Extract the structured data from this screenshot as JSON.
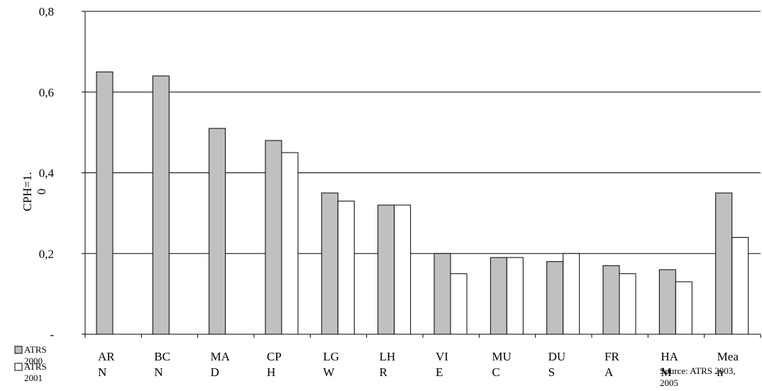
{
  "chart_data": {
    "type": "bar",
    "categories": [
      "ARN",
      "BCN",
      "MAD",
      "CPH",
      "LGW",
      "LHR",
      "VIE",
      "MUC",
      "DUS",
      "FRA",
      "HAM",
      "Mean"
    ],
    "category_label_lines": [
      [
        "AR",
        "N"
      ],
      [
        "BC",
        "N"
      ],
      [
        "MA",
        "D"
      ],
      [
        "CP",
        "H"
      ],
      [
        "LG",
        "W"
      ],
      [
        "LH",
        "R"
      ],
      [
        "VI",
        "E"
      ],
      [
        "MU",
        "C"
      ],
      [
        "DU",
        "S"
      ],
      [
        "FR",
        "A"
      ],
      [
        "HA",
        "M"
      ],
      [
        "Mea",
        "n"
      ]
    ],
    "series": [
      {
        "name_lines": [
          "ATRS",
          "2000"
        ],
        "color": "#c0c0c0",
        "values": [
          0.65,
          0.64,
          0.51,
          0.48,
          0.35,
          0.32,
          0.2,
          0.19,
          0.18,
          0.17,
          0.16,
          0.35
        ]
      },
      {
        "name_lines": [
          "ATRS",
          "2001"
        ],
        "color": "#ffffff",
        "values": [
          null,
          null,
          null,
          0.45,
          0.33,
          0.32,
          0.15,
          0.19,
          0.2,
          0.15,
          0.13,
          0.24
        ]
      }
    ],
    "ylim": [
      0,
      0.8
    ],
    "yticks": [
      0,
      0.2,
      0.4,
      0.6,
      0.8
    ],
    "ytick_labels": [
      "-",
      "0,2",
      "0,4",
      "0,6",
      "0,8"
    ],
    "ylabel_lines": [
      "CPH=1.",
      "0"
    ],
    "grid": true,
    "legend_position": "bottom-left",
    "source_lines": [
      "Source: ATRS 2003,",
      "2005"
    ]
  }
}
